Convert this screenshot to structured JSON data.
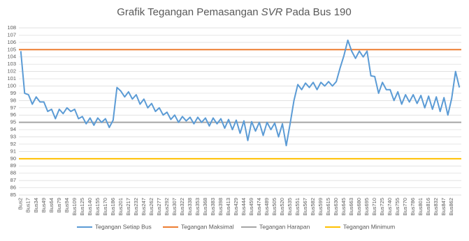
{
  "chart_data": {
    "type": "line",
    "title_parts": [
      "Grafik Tegangan Pemasangan",
      "SVR",
      "Pada Bus 190"
    ],
    "categories": [
      "Bus2",
      null,
      "Bus17",
      null,
      "Bus34",
      null,
      "Bus49",
      null,
      "Bus64",
      null,
      "Bus79",
      null,
      "Bus94",
      null,
      "Bus109",
      null,
      "Bus125",
      null,
      "Bus140",
      null,
      "Bus155",
      null,
      "Bus170",
      null,
      "Bus186",
      null,
      "Bus201",
      null,
      "Bus217",
      null,
      "Bus232",
      null,
      "Bus247",
      null,
      "Bus262",
      null,
      "Bus277",
      null,
      "Bus292",
      null,
      "Bus307",
      null,
      "Bus322",
      null,
      "Bus338",
      null,
      "Bus353",
      null,
      "Bus368",
      null,
      "Bus383",
      null,
      "Bus398",
      null,
      "Bus413",
      null,
      "Bus429",
      null,
      "Bus444",
      null,
      "Bus459",
      null,
      "Bus474",
      null,
      "Bus489",
      null,
      "Bus505",
      null,
      "Bus520",
      null,
      "Bus535",
      null,
      "Bus551",
      null,
      "Bus567",
      null,
      "Bus582",
      null,
      "Bus599",
      null,
      "Bus615",
      null,
      "Bus630",
      null,
      "Bus645",
      null,
      "Bus663",
      null,
      "Bus680",
      null,
      "Bus695",
      null,
      "Bus710",
      null,
      "Bus725",
      null,
      "Bus740",
      null,
      "Bus755",
      null,
      "Bus770",
      null,
      "Bus786",
      null,
      "Bus801",
      null,
      "Bus816",
      null,
      "Bus832",
      null,
      "Bus847",
      null,
      "Bus862",
      null,
      null
    ],
    "series": [
      {
        "name": "Tegangan Setiap Bus",
        "color": "#5b9bd5",
        "values": [
          104.8,
          99,
          98.8,
          97.5,
          98.5,
          97.8,
          97.8,
          96.5,
          96.8,
          95.5,
          96.8,
          96.2,
          97,
          96.5,
          96.8,
          95.5,
          95.8,
          94.8,
          95.6,
          94.6,
          95.6,
          95,
          95.5,
          94.3,
          95.3,
          99.8,
          99.3,
          98.5,
          99.2,
          98.2,
          98.8,
          97.5,
          98.2,
          97,
          97.6,
          96.5,
          97,
          96,
          96.4,
          95.4,
          96,
          95,
          95.8,
          95.2,
          95.7,
          94.8,
          95.7,
          95,
          95.6,
          94.5,
          95.6,
          94.8,
          95.5,
          94.2,
          95.4,
          94,
          95.3,
          93.5,
          95.2,
          92.5,
          95.1,
          93.8,
          95,
          93.2,
          95,
          94,
          94.9,
          93,
          94.8,
          91.8,
          94.8,
          98,
          100.2,
          99.5,
          100.4,
          99.8,
          100.5,
          99.5,
          100.5,
          100,
          100.6,
          100,
          100.6,
          102.5,
          104.2,
          106.3,
          104.8,
          103.8,
          104.8,
          104,
          104.8,
          101.4,
          101.3,
          99,
          100.5,
          99.5,
          99.5,
          98,
          99.2,
          97.5,
          98.8,
          97.8,
          98.8,
          97.6,
          98.7,
          97,
          98.6,
          96.8,
          98.5,
          96.5,
          98.4,
          96,
          98.3,
          102,
          99.8
        ]
      }
    ],
    "reference_lines": [
      {
        "name": "Tegangan Maksimal",
        "color": "#ed7d31",
        "value": 105
      },
      {
        "name": "Tegangan Harapan",
        "color": "#a5a5a5",
        "value": 95
      },
      {
        "name": "Tegangan Minimum",
        "color": "#ffc000",
        "value": 90
      }
    ],
    "ylim": [
      85,
      108
    ],
    "yticks": [
      85,
      86,
      87,
      88,
      89,
      90,
      91,
      92,
      93,
      94,
      95,
      96,
      97,
      98,
      99,
      100,
      101,
      102,
      103,
      104,
      105,
      106,
      107,
      108
    ],
    "grid": true
  }
}
